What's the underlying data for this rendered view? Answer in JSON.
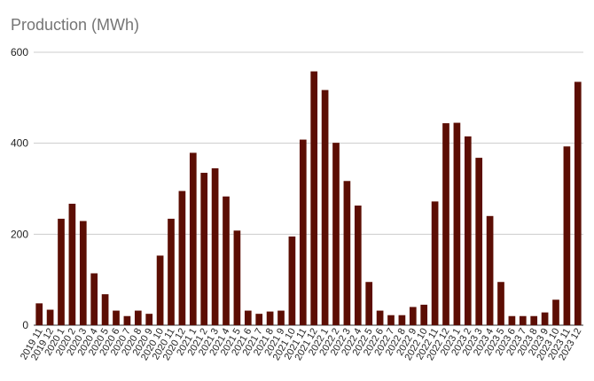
{
  "chart_data": {
    "type": "bar",
    "title": "Production (MWh)",
    "xlabel": "",
    "ylabel": "",
    "ylim": [
      0,
      600
    ],
    "yticks": [
      0,
      200,
      400,
      600
    ],
    "grid": true,
    "bar_color": "#5c0e04",
    "categories": [
      "2019 11",
      "2019 12",
      "2020 1",
      "2020 2",
      "2020 3",
      "2020 4",
      "2020 5",
      "2020 6",
      "2020 7",
      "2020 8",
      "2020 9",
      "2020 10",
      "2020 11",
      "2020 12",
      "2021 1",
      "2021 2",
      "2021 3",
      "2021 4",
      "2021 5",
      "2021 6",
      "2021 7",
      "2021 8",
      "2021 9",
      "2021 10",
      "2021 11",
      "2021 12",
      "2022 1",
      "2022 2",
      "2022 3",
      "2022 4",
      "2022 5",
      "2022 6",
      "2022 7",
      "2022 8",
      "2022 9",
      "2022 10",
      "2022 11",
      "2022 12",
      "2023 1",
      "2023 2",
      "2023 3",
      "2023 4",
      "2023 5",
      "2023 6",
      "2023 7",
      "2023 8",
      "2023 9",
      "2023 10",
      "2023 11",
      "2023 12"
    ],
    "values": [
      48,
      34,
      234,
      267,
      229,
      114,
      68,
      32,
      20,
      32,
      25,
      153,
      234,
      295,
      379,
      335,
      345,
      283,
      208,
      32,
      25,
      30,
      32,
      195,
      408,
      558,
      517,
      401,
      317,
      263,
      95,
      32,
      22,
      22,
      40,
      45,
      272,
      444,
      445,
      415,
      368,
      240,
      95,
      20,
      20,
      20,
      28,
      56,
      393,
      535
    ]
  }
}
